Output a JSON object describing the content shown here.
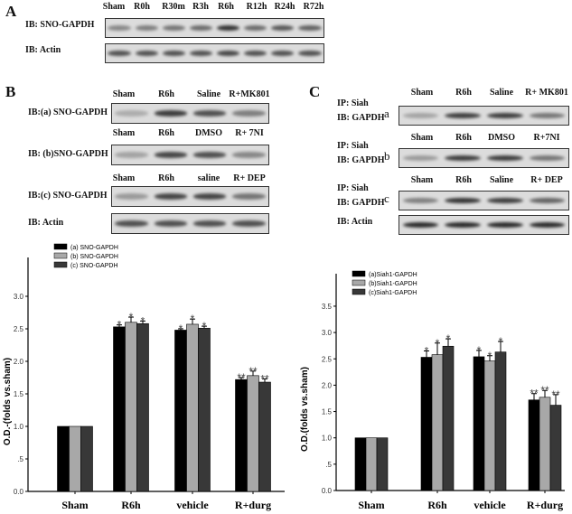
{
  "panel_a": {
    "label": "A",
    "lanes": [
      "Sham",
      "R0h",
      "R30m",
      "R3h",
      "R6h",
      "R12h",
      "R24h",
      "R72h"
    ],
    "rows": [
      {
        "label": "IB: SNO-GAPDH",
        "band_intensity": [
          0.45,
          0.5,
          0.55,
          0.6,
          0.9,
          0.6,
          0.7,
          0.65
        ]
      },
      {
        "label": "IB: Actin",
        "band_intensity": [
          0.75,
          0.75,
          0.75,
          0.75,
          0.8,
          0.75,
          0.75,
          0.75
        ]
      }
    ]
  },
  "panel_b": {
    "label": "B",
    "rows": [
      {
        "lanes": [
          "Sham",
          "R6h",
          "Saline",
          "R+MK801"
        ],
        "label": "IB:(a) SNO-GAPDH",
        "band_intensity": [
          0.25,
          0.85,
          0.75,
          0.5
        ]
      },
      {
        "lanes": [
          "Sham",
          "R6h",
          "DMSO",
          "R+ 7NI"
        ],
        "label": "IB: (b)SNO-GAPDH",
        "band_intensity": [
          0.3,
          0.8,
          0.75,
          0.45
        ]
      },
      {
        "lanes": [
          "Sham",
          "R6h",
          "saline",
          "R+ DEP"
        ],
        "label": "IB:(c) SNO-GAPDH",
        "band_intensity": [
          0.35,
          0.8,
          0.8,
          0.55
        ]
      },
      {
        "lanes": [],
        "label": "IB: Actin",
        "band_intensity": [
          0.75,
          0.75,
          0.75,
          0.75
        ]
      }
    ]
  },
  "panel_c": {
    "label": "C",
    "rows": [
      {
        "lanes": [
          "Sham",
          "R6h",
          "Saline",
          "R+ MK801"
        ],
        "ip": "IP: Siah",
        "ib": "IB: GAPDH",
        "sub": "a",
        "band_intensity": [
          0.3,
          0.85,
          0.85,
          0.55
        ]
      },
      {
        "lanes": [
          "Sham",
          "R6h",
          "DMSO",
          "R+7NI"
        ],
        "ip": "IP: Siah",
        "ib": "IB: GAPDH",
        "sub": "b",
        "band_intensity": [
          0.35,
          0.85,
          0.85,
          0.55
        ]
      },
      {
        "lanes": [
          "Sham",
          "R6h",
          "Saline",
          "R+ DEP"
        ],
        "ip": "IP: Siah",
        "ib": "IB: GAPDH",
        "sub": "c",
        "band_intensity": [
          0.5,
          0.9,
          0.85,
          0.65
        ]
      },
      {
        "lanes": [],
        "ip": "",
        "ib": "IB: Actin",
        "sub": "",
        "band_intensity": [
          0.95,
          0.95,
          0.95,
          0.95
        ]
      }
    ]
  },
  "chart_data": [
    {
      "type": "bar",
      "categories": [
        "Sham",
        "R6h",
        "vehicle",
        "R+durg"
      ],
      "ylabel": "O.D.-(folds vs.sham)",
      "ylim": [
        0,
        3.5
      ],
      "yticks": [
        "0.0",
        ".5",
        "1.0",
        "1.5",
        "2.0",
        "2.5",
        "3.0"
      ],
      "legend": "top-left",
      "series": [
        {
          "name": "(a) SNO-GAPDH",
          "color": "#000000",
          "values": [
            1,
            2.53,
            2.48,
            1.72
          ],
          "errors": [
            0,
            0.03,
            0.02,
            0.03
          ],
          "marks": [
            "",
            "*",
            "*",
            "**"
          ]
        },
        {
          "name": "(b) SNO-GAPDH",
          "color": "#a8a8a8",
          "values": [
            1,
            2.6,
            2.57,
            1.78
          ],
          "errors": [
            0,
            0.08,
            0.08,
            0.07
          ],
          "marks": [
            "",
            "*",
            "*",
            "**"
          ]
        },
        {
          "name": "(c) SNO-GAPDH",
          "color": "#383838",
          "values": [
            1,
            2.58,
            2.51,
            1.68
          ],
          "errors": [
            0,
            0.04,
            0.03,
            0.05
          ],
          "marks": [
            "",
            "*",
            "*",
            "**"
          ]
        }
      ]
    },
    {
      "type": "bar",
      "categories": [
        "Sham",
        "R6h",
        "vehicle",
        "R+durg"
      ],
      "ylabel": "O.D.(folds vs.sham)",
      "ylim": [
        0,
        4.2
      ],
      "yticks": [
        "0.0",
        ".5",
        "1.0",
        "1.5",
        "2.0",
        "2.5",
        "3.0",
        "3.5"
      ],
      "legend": "top-left",
      "series": [
        {
          "name": "(a)Siah1-GAPDH",
          "color": "#000000",
          "values": [
            1,
            2.53,
            2.54,
            1.72
          ],
          "errors": [
            0,
            0.12,
            0.12,
            0.12
          ],
          "marks": [
            "",
            "*",
            "*",
            "**"
          ]
        },
        {
          "name": "(b)Siah1-GAPDH",
          "color": "#a8a8a8",
          "values": [
            1,
            2.58,
            2.46,
            1.77
          ],
          "errors": [
            0,
            0.22,
            0.1,
            0.13
          ],
          "marks": [
            "",
            "*",
            "*",
            "**"
          ]
        },
        {
          "name": "(c)Siah1-GAPDH",
          "color": "#383838",
          "values": [
            1,
            2.74,
            2.63,
            1.62
          ],
          "errors": [
            0,
            0.14,
            0.2,
            0.2
          ],
          "marks": [
            "",
            "*",
            "*",
            "**"
          ]
        }
      ]
    }
  ]
}
